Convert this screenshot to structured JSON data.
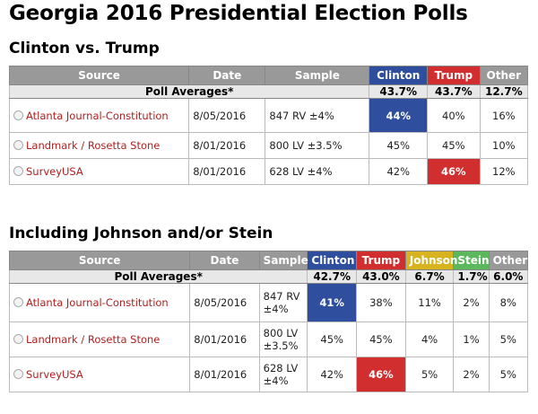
{
  "title": "Georgia 2016 Presidential Election Polls",
  "section1": {
    "heading": "Clinton vs. Trump",
    "headers": {
      "source": "Source",
      "date": "Date",
      "sample": "Sample",
      "clinton": "Clinton",
      "trump": "Trump",
      "other": "Other"
    },
    "averages": {
      "label": "Poll Averages*",
      "clinton": "43.7%",
      "trump": "43.7%",
      "other": "12.7%"
    },
    "rows": [
      {
        "source": "Atlanta Journal-Constitution",
        "date": "8/05/2016",
        "sample": "847 RV ±4%",
        "clinton": "44%",
        "trump": "40%",
        "other": "16%"
      },
      {
        "source": "Landmark / Rosetta Stone",
        "date": "8/01/2016",
        "sample": "800 LV ±3.5%",
        "clinton": "45%",
        "trump": "45%",
        "other": "10%"
      },
      {
        "source": "SurveyUSA",
        "date": "8/01/2016",
        "sample": "628 LV ±4%",
        "clinton": "42%",
        "trump": "46%",
        "other": "12%"
      }
    ]
  },
  "section2": {
    "heading": "Including Johnson and/or Stein",
    "headers": {
      "source": "Source",
      "date": "Date",
      "sample": "Sample",
      "clinton": "Clinton",
      "trump": "Trump",
      "johnson": "Johnson",
      "stein": "Stein",
      "other": "Other"
    },
    "averages": {
      "label": "Poll Averages*",
      "clinton": "42.7%",
      "trump": "43.0%",
      "johnson": "6.7%",
      "stein": "1.7%",
      "other": "6.0%"
    },
    "rows": [
      {
        "source": "Atlanta Journal-Constitution",
        "date": "8/05/2016",
        "sample": "847 RV ±4%",
        "clinton": "41%",
        "trump": "38%",
        "johnson": "11%",
        "stein": "2%",
        "other": "8%"
      },
      {
        "source": "Landmark / Rosetta Stone",
        "date": "8/01/2016",
        "sample": "800 LV ±3.5%",
        "clinton": "45%",
        "trump": "45%",
        "johnson": "4%",
        "stein": "1%",
        "other": "5%"
      },
      {
        "source": "SurveyUSA",
        "date": "8/01/2016",
        "sample": "628 LV ±4%",
        "clinton": "42%",
        "trump": "46%",
        "johnson": "5%",
        "stein": "2%",
        "other": "5%"
      }
    ]
  },
  "colors": {
    "clinton": "#2f4f9e",
    "trump": "#d12f2f",
    "johnson": "#d7b31f",
    "stein": "#5cb85c",
    "header": "#999999"
  }
}
